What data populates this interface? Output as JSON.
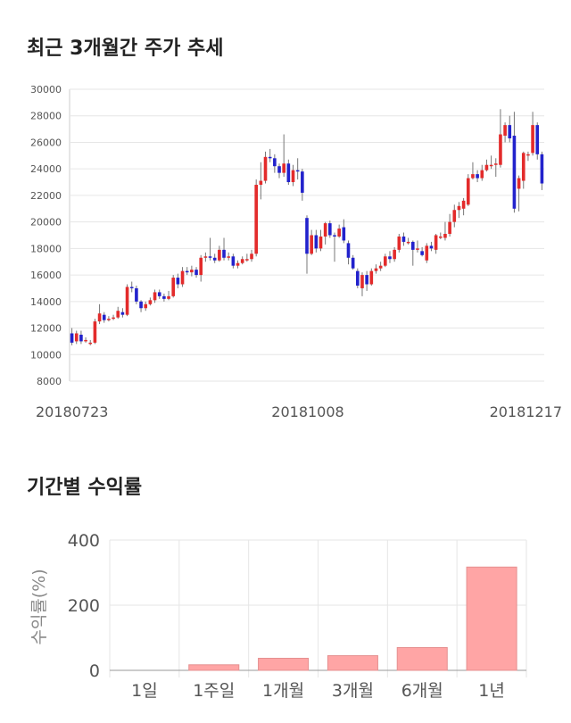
{
  "titles": {
    "price_trend": "최근 3개월간 주가 추세",
    "period_returns": "기간별 수익률"
  },
  "colors": {
    "up": "#e32b2b",
    "down": "#2222cc",
    "wick": "#777777",
    "bar": "#ffa5a5",
    "bar_stroke": "#e59090"
  },
  "chart_data": [
    {
      "type": "candlestick",
      "title": "최근 3개월간 주가 추세",
      "ylim": [
        8000,
        30000
      ],
      "y_ticks": [
        "30000",
        "28000",
        "26000",
        "24000",
        "22000",
        "20000",
        "18000",
        "16000",
        "14000",
        "12000",
        "10000",
        "8000"
      ],
      "x_tick_labels": [
        "20180723",
        "20181008",
        "20181217"
      ],
      "grid": true,
      "candles": [
        [
          11600,
          10900,
          12000,
          10700
        ],
        [
          11000,
          11600,
          11800,
          10800
        ],
        [
          11500,
          11000,
          11800,
          10800
        ],
        [
          11000,
          11100,
          11300,
          10900
        ],
        [
          10900,
          10900,
          11100,
          10700
        ],
        [
          10900,
          12500,
          12700,
          10800
        ],
        [
          12500,
          13100,
          13800,
          12300
        ],
        [
          13000,
          12600,
          13200,
          12400
        ],
        [
          12600,
          12700,
          12900,
          12500
        ],
        [
          12700,
          12800,
          13000,
          12600
        ],
        [
          12800,
          13300,
          13600,
          12700
        ],
        [
          13200,
          13000,
          13500,
          12800
        ],
        [
          13000,
          15100,
          15300,
          12900
        ],
        [
          15100,
          15000,
          15500,
          14700
        ],
        [
          15000,
          14000,
          15200,
          13800
        ],
        [
          14000,
          13500,
          14100,
          13200
        ],
        [
          13500,
          13800,
          14000,
          13300
        ],
        [
          13800,
          14100,
          14300,
          13700
        ],
        [
          14100,
          14700,
          14900,
          13900
        ],
        [
          14700,
          14400,
          14900,
          14200
        ],
        [
          14400,
          14200,
          14600,
          14000
        ],
        [
          14200,
          14400,
          14800,
          14100
        ],
        [
          14400,
          15800,
          16000,
          14300
        ],
        [
          15800,
          15300,
          16100,
          15000
        ],
        [
          15300,
          16300,
          16600,
          15100
        ],
        [
          16300,
          16200,
          16600,
          16000
        ],
        [
          16200,
          16400,
          16700,
          15900
        ],
        [
          16400,
          16000,
          16600,
          15800
        ],
        [
          16000,
          17300,
          17500,
          15500
        ],
        [
          17300,
          17400,
          17700,
          17000
        ],
        [
          17400,
          17300,
          18800,
          17100
        ],
        [
          17300,
          17100,
          17600,
          16900
        ],
        [
          17100,
          17900,
          18200,
          17000
        ],
        [
          17900,
          17300,
          18800,
          17100
        ],
        [
          17300,
          17400,
          17700,
          17100
        ],
        [
          17400,
          16700,
          17600,
          16500
        ],
        [
          16700,
          16900,
          17100,
          16500
        ],
        [
          16900,
          17200,
          17400,
          16800
        ],
        [
          17200,
          17200,
          17600,
          17000
        ],
        [
          17200,
          17600,
          17900,
          17000
        ],
        [
          17600,
          22800,
          23200,
          17400
        ],
        [
          22800,
          23100,
          24500,
          21700
        ],
        [
          23100,
          24900,
          25300,
          22900
        ],
        [
          24900,
          24800,
          25500,
          24500
        ],
        [
          24800,
          24200,
          25100,
          23700
        ],
        [
          24200,
          23700,
          24400,
          23300
        ],
        [
          23700,
          24400,
          26600,
          23400
        ],
        [
          24400,
          23000,
          24700,
          22800
        ],
        [
          23000,
          23900,
          24300,
          22700
        ],
        [
          23900,
          23800,
          24800,
          23200
        ],
        [
          23800,
          22200,
          24000,
          21600
        ],
        [
          20300,
          17600,
          20500,
          16100
        ],
        [
          17600,
          19000,
          19400,
          17500
        ],
        [
          19000,
          18000,
          19400,
          17700
        ],
        [
          18000,
          18900,
          19400,
          17800
        ],
        [
          18900,
          19900,
          20000,
          18300
        ],
        [
          19900,
          19000,
          20100,
          18800
        ],
        [
          19000,
          18900,
          19200,
          17000
        ],
        [
          18900,
          19500,
          19800,
          18800
        ],
        [
          19600,
          18600,
          20200,
          18400
        ],
        [
          18400,
          17300,
          18600,
          16800
        ],
        [
          17300,
          16500,
          17500,
          16400
        ],
        [
          16300,
          15200,
          16500,
          15000
        ],
        [
          15000,
          16000,
          16200,
          14400
        ],
        [
          16000,
          15300,
          16300,
          14800
        ],
        [
          15300,
          16300,
          16500,
          15200
        ],
        [
          16300,
          16500,
          16800,
          16100
        ],
        [
          16500,
          16700,
          17000,
          16300
        ],
        [
          16700,
          17400,
          17600,
          16600
        ],
        [
          17400,
          17200,
          17800,
          16900
        ],
        [
          17200,
          17900,
          18100,
          17000
        ],
        [
          17900,
          18900,
          19100,
          17700
        ],
        [
          18900,
          18500,
          19200,
          18200
        ],
        [
          18500,
          18500,
          18800,
          18300
        ],
        [
          18500,
          17900,
          18600,
          16700
        ],
        [
          17900,
          18000,
          18600,
          17700
        ],
        [
          17800,
          17500,
          18100,
          17400
        ],
        [
          17100,
          18200,
          18400,
          16900
        ],
        [
          18200,
          18000,
          18500,
          17800
        ],
        [
          17900,
          19000,
          19100,
          17600
        ],
        [
          18900,
          18900,
          19200,
          18700
        ],
        [
          18800,
          19100,
          20000,
          18600
        ],
        [
          19100,
          20000,
          20600,
          18900
        ],
        [
          20000,
          20900,
          21300,
          19600
        ],
        [
          20900,
          21200,
          21500,
          20300
        ],
        [
          21000,
          21600,
          21800,
          20500
        ],
        [
          21300,
          23300,
          23600,
          21200
        ],
        [
          23300,
          23600,
          24500,
          23200
        ],
        [
          23600,
          23300,
          23900,
          23000
        ],
        [
          23300,
          23900,
          24300,
          23100
        ],
        [
          23900,
          24300,
          24700,
          23800
        ],
        [
          24300,
          24300,
          25000,
          24000
        ],
        [
          24300,
          24400,
          24800,
          23400
        ],
        [
          24300,
          26600,
          28500,
          24100
        ],
        [
          26500,
          27300,
          27500,
          26000
        ],
        [
          27300,
          26300,
          28000,
          26000
        ],
        [
          26500,
          21000,
          28300,
          20700
        ],
        [
          22500,
          23300,
          23500,
          20800
        ],
        [
          23100,
          25200,
          25300,
          22500
        ],
        [
          25000,
          25100,
          25300,
          24600
        ],
        [
          25200,
          27300,
          28300,
          25000
        ],
        [
          27300,
          25100,
          27500,
          24700
        ],
        [
          25100,
          22900,
          25300,
          22400
        ]
      ]
    },
    {
      "type": "bar",
      "title": "기간별 수익률",
      "ylabel": "수익률(%)",
      "ylim": [
        0,
        400
      ],
      "y_ticks": [
        "400",
        "200",
        "0"
      ],
      "categories": [
        "1일",
        "1주일",
        "1개월",
        "3개월",
        "6개월",
        "1년"
      ],
      "values": [
        0,
        17,
        37,
        45,
        70,
        317
      ],
      "grid": true
    }
  ]
}
